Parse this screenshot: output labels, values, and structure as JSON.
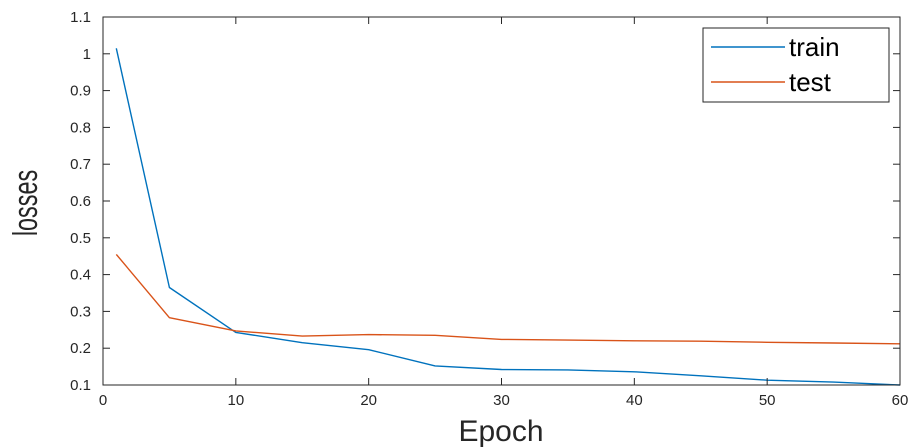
{
  "chart_data": {
    "type": "line",
    "title": "",
    "xlabel": "Epoch",
    "ylabel": "losses",
    "xlim": [
      0,
      60
    ],
    "ylim": [
      0.1,
      1.1
    ],
    "x_ticks": [
      "0",
      "10",
      "20",
      "30",
      "40",
      "50",
      "60"
    ],
    "y_ticks": [
      "0.1",
      "0.2",
      "0.3",
      "0.4",
      "0.5",
      "0.6",
      "0.7",
      "0.8",
      "0.9",
      "1",
      "1.1"
    ],
    "grid": false,
    "legend_position": "top-right",
    "series": [
      {
        "name": "train",
        "color": "#0072BD",
        "x": [
          1,
          5,
          10,
          15,
          20,
          25,
          30,
          35,
          40,
          45,
          50,
          55,
          60
        ],
        "y": [
          1.015,
          0.365,
          0.243,
          0.215,
          0.196,
          0.152,
          0.142,
          0.141,
          0.136,
          0.125,
          0.113,
          0.108,
          0.1
        ]
      },
      {
        "name": "test",
        "color": "#D95319",
        "x": [
          1,
          5,
          10,
          15,
          20,
          25,
          30,
          35,
          40,
          45,
          50,
          55,
          60
        ],
        "y": [
          0.455,
          0.283,
          0.247,
          0.233,
          0.237,
          0.235,
          0.224,
          0.222,
          0.22,
          0.219,
          0.216,
          0.214,
          0.212
        ]
      }
    ]
  }
}
